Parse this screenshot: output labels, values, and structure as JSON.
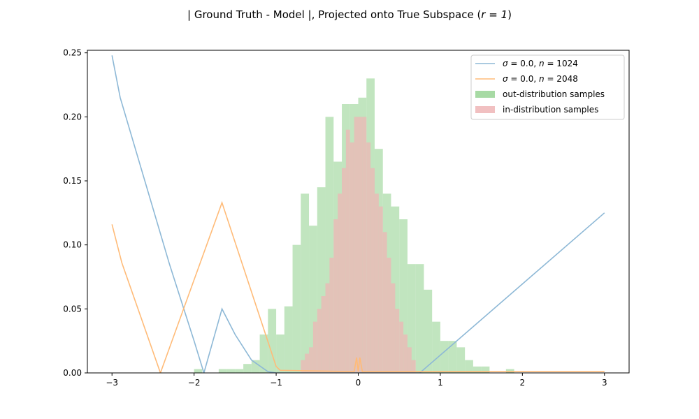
{
  "chart_data": {
    "type": "line",
    "title": "| Ground Truth - Model |, Projected onto True Subspace (",
    "title_math": "r = 1",
    "title_suffix": ")",
    "xlabel": "",
    "ylabel": "",
    "xlim": [
      -3.3,
      3.3
    ],
    "ylim": [
      0,
      0.252
    ],
    "xticks": [
      -3,
      -2,
      -1,
      0,
      1,
      2,
      3
    ],
    "xtick_labels": [
      "−3",
      "−2",
      "−1",
      "0",
      "1",
      "2",
      "3"
    ],
    "yticks": [
      0.0,
      0.05,
      0.1,
      0.15,
      0.2,
      0.25
    ],
    "ytick_labels": [
      "0.00",
      "0.05",
      "0.10",
      "0.15",
      "0.20",
      "0.25"
    ],
    "grid": false,
    "legend_position": "top-right",
    "series": [
      {
        "name": "σ = 0.0, n = 1024",
        "legend_math": {
          "sigma": "0.0",
          "n": "1024"
        },
        "kind": "line",
        "color": "#8db8d6",
        "x": [
          -3.0,
          -2.9,
          -2.6,
          -2.3,
          -2.0,
          -1.88,
          -1.66,
          -1.5,
          -1.3,
          -1.1,
          -1.0,
          0.0,
          0.75,
          3.0
        ],
        "y": [
          0.248,
          0.215,
          0.15,
          0.085,
          0.025,
          0.0,
          0.05,
          0.03,
          0.01,
          0.001,
          0.0,
          0.0,
          0.0,
          0.125
        ]
      },
      {
        "name": "σ = 0.0, n = 2048",
        "legend_math": {
          "sigma": "0.0",
          "n": "2048"
        },
        "kind": "line",
        "color": "#ffbb78",
        "x": [
          -3.0,
          -2.88,
          -2.41,
          -1.66,
          -1.0,
          -0.95,
          -0.05,
          -0.02,
          0.0,
          0.02,
          0.05,
          3.0
        ],
        "y": [
          0.116,
          0.086,
          0.0,
          0.133,
          0.005,
          0.002,
          0.001,
          0.012,
          0.001,
          0.012,
          0.001,
          0.001
        ]
      },
      {
        "name": "out-distribution samples",
        "kind": "histogram",
        "color": "#98d494",
        "bin_width": 0.1,
        "bins": [
          [
            -2.0,
            0.003
          ],
          [
            -1.7,
            0.003
          ],
          [
            -1.6,
            0.003
          ],
          [
            -1.5,
            0.003
          ],
          [
            -1.4,
            0.007
          ],
          [
            -1.3,
            0.01
          ],
          [
            -1.2,
            0.03
          ],
          [
            -1.1,
            0.05
          ],
          [
            -1.0,
            0.03
          ],
          [
            -0.9,
            0.052
          ],
          [
            -0.8,
            0.1
          ],
          [
            -0.7,
            0.14
          ],
          [
            -0.6,
            0.115
          ],
          [
            -0.5,
            0.145
          ],
          [
            -0.4,
            0.2
          ],
          [
            -0.3,
            0.165
          ],
          [
            -0.2,
            0.21
          ],
          [
            -0.1,
            0.21
          ],
          [
            0.0,
            0.215
          ],
          [
            0.1,
            0.23
          ],
          [
            0.2,
            0.175
          ],
          [
            0.3,
            0.14
          ],
          [
            0.4,
            0.13
          ],
          [
            0.5,
            0.12
          ],
          [
            0.6,
            0.085
          ],
          [
            0.7,
            0.085
          ],
          [
            0.8,
            0.065
          ],
          [
            0.9,
            0.04
          ],
          [
            1.0,
            0.025
          ],
          [
            1.1,
            0.025
          ],
          [
            1.2,
            0.02
          ],
          [
            1.3,
            0.01
          ],
          [
            1.4,
            0.005
          ],
          [
            1.5,
            0.005
          ],
          [
            1.8,
            0.003
          ]
        ]
      },
      {
        "name": "in-distribution samples",
        "kind": "histogram",
        "color": "#eeb5b6",
        "bin_width": 0.05,
        "bins": [
          [
            -0.7,
            0.01
          ],
          [
            -0.65,
            0.015
          ],
          [
            -0.6,
            0.02
          ],
          [
            -0.55,
            0.04
          ],
          [
            -0.5,
            0.05
          ],
          [
            -0.45,
            0.06
          ],
          [
            -0.4,
            0.07
          ],
          [
            -0.35,
            0.09
          ],
          [
            -0.3,
            0.12
          ],
          [
            -0.25,
            0.14
          ],
          [
            -0.2,
            0.16
          ],
          [
            -0.15,
            0.19
          ],
          [
            -0.1,
            0.18
          ],
          [
            -0.05,
            0.2
          ],
          [
            0.0,
            0.2
          ],
          [
            0.05,
            0.2
          ],
          [
            0.1,
            0.18
          ],
          [
            0.15,
            0.16
          ],
          [
            0.2,
            0.14
          ],
          [
            0.25,
            0.13
          ],
          [
            0.3,
            0.11
          ],
          [
            0.35,
            0.09
          ],
          [
            0.4,
            0.07
          ],
          [
            0.45,
            0.05
          ],
          [
            0.5,
            0.04
          ],
          [
            0.55,
            0.03
          ],
          [
            0.6,
            0.02
          ],
          [
            0.65,
            0.01
          ]
        ]
      }
    ]
  }
}
